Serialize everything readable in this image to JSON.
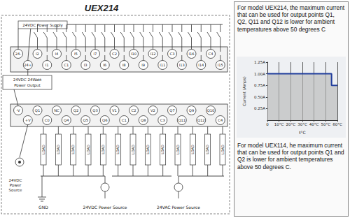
{
  "diagram": {
    "title": "UEX214",
    "power_supply": "24VDC Power Supply",
    "power_output": [
      "24VDC 24Watt",
      "Power Output"
    ],
    "input_terminals": {
      "upper": [
        "24-",
        "I2",
        "I4",
        "I5",
        "I7",
        "C2",
        "I10",
        "I12",
        "C3",
        "I16",
        "C4"
      ],
      "lower": [
        "24+",
        "I1",
        "C1",
        "I3",
        "I6",
        "I8",
        "I9",
        "I11",
        "I13",
        "I14",
        "I15"
      ]
    },
    "output_terminals": {
      "upper": [
        "-V",
        "Q1",
        "NC",
        "Q2",
        "Q3",
        "V1",
        "C2",
        "V2",
        "Q7",
        "Q9",
        "Q10"
      ],
      "lower": [
        "+V",
        "C0",
        "Q4",
        "Q5",
        "Q6",
        "C1",
        "Q8",
        "C3",
        "Q11",
        "Q12",
        "C4"
      ]
    },
    "loads": [
      "LOAD",
      "LOAD",
      "LOAD",
      "LOAD",
      "LOAD",
      "LOAD",
      "LOAD",
      "LOAD",
      "LOAD",
      "LOAD",
      "LOAD",
      "LOAD",
      "LOAD"
    ],
    "sources": {
      "left": "24VDC Power Source",
      "ground": "GND",
      "dc": "24VDC Power Source",
      "ac": "24VAC Power Source"
    }
  },
  "notes": [
    "For model UEX214, the maximum current that can be used for output points Q1, Q2, Q11 and Q12 is lower for ambient temperatures above 50 degrees C",
    "For model UEX114, he maximum current that can be used for output points Q1 and Q2 is lower for ambient temperatures above 50 degrees C."
  ],
  "chart_data": {
    "type": "line",
    "line_style": "step",
    "x_label": "t°C",
    "y_label": "Current (Amps)",
    "x": [
      0,
      10,
      20,
      30,
      40,
      50,
      55,
      60
    ],
    "values": [
      1.0,
      1.0,
      1.0,
      1.0,
      1.0,
      1.0,
      0.75,
      0.75
    ],
    "color": "#1f3c9c",
    "xlim": [
      0,
      60
    ],
    "xticks": [
      0,
      {
        "value": 10,
        "label": "10°C"
      },
      {
        "value": 20,
        "label": "20°C"
      },
      {
        "value": 30,
        "label": "30°C"
      },
      {
        "value": 40,
        "label": "40°C"
      },
      {
        "value": 50,
        "label": "50°C"
      },
      {
        "value": 60,
        "label": "60°C"
      }
    ],
    "ylim": [
      0,
      1.25
    ],
    "yticks": [
      {
        "value": 0.25,
        "label": "0.25A"
      },
      {
        "value": 0.5,
        "label": "0.50A"
      },
      {
        "value": 0.75,
        "label": "0.75A"
      },
      {
        "value": 1.0,
        "label": "1.00A"
      },
      {
        "value": 1.25,
        "label": "1.25A"
      }
    ],
    "grid": "x"
  }
}
